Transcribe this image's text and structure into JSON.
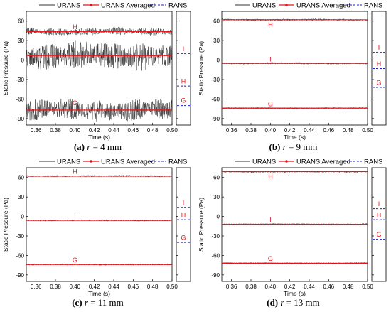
{
  "chart_data": [
    {
      "type": "line",
      "caption": {
        "letter": "(a)",
        "var": "r",
        "eq": " = 4 mm"
      },
      "xlabel": "Time (s)",
      "ylabel": "Static Pressure (Pa)",
      "xlim": [
        0.35,
        0.5
      ],
      "ylim": [
        -100,
        75
      ],
      "xticks": [
        0.36,
        0.38,
        0.4,
        0.42,
        0.44,
        0.46,
        0.48,
        0.5
      ],
      "yticks": [
        -90,
        -60,
        -30,
        0,
        30,
        60
      ],
      "legend": [
        "URANS",
        "URANS Averaged",
        "RANS"
      ],
      "series": [
        {
          "label": "H",
          "mean": 44,
          "noise": 6,
          "label_y": 51,
          "rans": -40,
          "rans_label_y": -33
        },
        {
          "label": "I",
          "mean": 7,
          "noise": 22,
          "label_y": 17,
          "rans": 10,
          "rans_label_y": 17
        },
        {
          "label": "G",
          "mean": -77,
          "noise": 17,
          "label_y": -66,
          "rans": -70,
          "rans_label_y": -62
        }
      ],
      "colors": {
        "urans": "#333333",
        "averaged": "#e8141c",
        "rans": "#1f1fc8"
      }
    },
    {
      "type": "line",
      "caption": {
        "letter": "(b)",
        "var": "r",
        "eq": " = 9 mm"
      },
      "xlabel": "Time (s)",
      "ylabel": "Static Pressure (Pa)",
      "xlim": [
        0.35,
        0.5
      ],
      "ylim": [
        -100,
        75
      ],
      "xticks": [
        0.36,
        0.38,
        0.4,
        0.42,
        0.44,
        0.46,
        0.48,
        0.5
      ],
      "yticks": [
        -90,
        -60,
        -30,
        0,
        30,
        60
      ],
      "legend": [
        "URANS",
        "URANS Averaged",
        "RANS"
      ],
      "series": [
        {
          "label": "H",
          "mean": 62,
          "noise": 1.5,
          "label_y": 55,
          "rans": -13,
          "rans_label_y": -6
        },
        {
          "label": "I",
          "mean": -5,
          "noise": 1.5,
          "label_y": 1,
          "rans": 12,
          "rans_label_y": 19
        },
        {
          "label": "G",
          "mean": -74,
          "noise": 1.2,
          "label_y": -68,
          "rans": -42,
          "rans_label_y": -35
        }
      ],
      "colors": {
        "urans": "#333333",
        "averaged": "#e8141c",
        "rans": "#1f1fc8"
      }
    },
    {
      "type": "line",
      "caption": {
        "letter": "(c)",
        "var": "r",
        "eq": " = 11 mm"
      },
      "xlabel": "Time (s)",
      "ylabel": "Static Pressure (Pa)",
      "xlim": [
        0.35,
        0.5
      ],
      "ylim": [
        -100,
        75
      ],
      "xticks": [
        0.36,
        0.38,
        0.4,
        0.42,
        0.44,
        0.46,
        0.48,
        0.5
      ],
      "yticks": [
        -90,
        -60,
        -30,
        0,
        30,
        60
      ],
      "legend": [
        "URANS",
        "URANS Averaged",
        "RANS"
      ],
      "series": [
        {
          "label": "H",
          "mean": 62,
          "noise": 1.5,
          "label_y": 69,
          "rans": -5,
          "rans_label_y": 2
        },
        {
          "label": "I",
          "mean": -6,
          "noise": 1.2,
          "label_y": 1,
          "rans": 14,
          "rans_label_y": 21
        },
        {
          "label": "G",
          "mean": -74,
          "noise": 1.2,
          "label_y": -67,
          "rans": -40,
          "rans_label_y": -33
        }
      ],
      "colors": {
        "urans": "#333333",
        "averaged": "#e8141c",
        "rans": "#1f1fc8"
      }
    },
    {
      "type": "line",
      "caption": {
        "letter": "(d)",
        "var": "r",
        "eq": " = 13 mm"
      },
      "xlabel": "Time (s)",
      "ylabel": "Static Pressure (Pa)",
      "xlim": [
        0.35,
        0.5
      ],
      "ylim": [
        -100,
        75
      ],
      "xticks": [
        0.36,
        0.38,
        0.4,
        0.42,
        0.44,
        0.46,
        0.48,
        0.5
      ],
      "yticks": [
        -90,
        -60,
        -30,
        0,
        30,
        60
      ],
      "legend": [
        "URANS",
        "URANS Averaged",
        "RANS"
      ],
      "series": [
        {
          "label": "H",
          "mean": 69,
          "noise": 1.5,
          "label_y": 62,
          "rans": -5,
          "rans_label_y": 2
        },
        {
          "label": "I",
          "mean": -12,
          "noise": 1.2,
          "label_y": -5,
          "rans": 12,
          "rans_label_y": 19
        },
        {
          "label": "G",
          "mean": -72,
          "noise": 1.2,
          "label_y": -65,
          "rans": -35,
          "rans_label_y": -28
        }
      ],
      "colors": {
        "urans": "#333333",
        "averaged": "#e8141c",
        "rans": "#1f1fc8"
      }
    }
  ]
}
